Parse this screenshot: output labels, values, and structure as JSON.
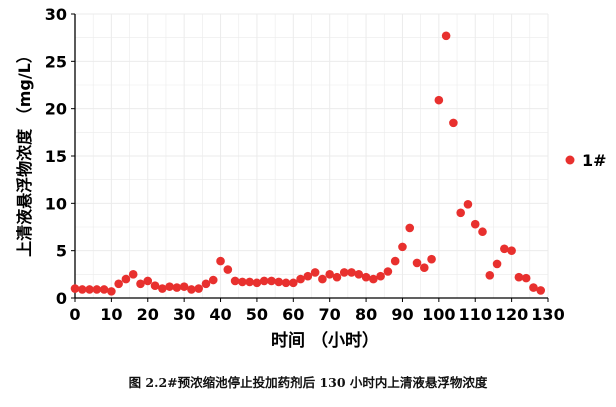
{
  "caption": "图 2.2#预浓缩池停止投加药剂后 130 小时内上清液悬浮物浓度",
  "colors": {
    "point": "#e8302e",
    "grid": "#ebebeb",
    "axis": "#000000"
  },
  "chart_data": {
    "type": "scatter",
    "title": "",
    "xlabel": "时间 （小时）",
    "ylabel": "上清液悬浮物浓度 （mg/L）",
    "xlim": [
      0,
      130
    ],
    "ylim": [
      0,
      30
    ],
    "x_ticks": [
      "0",
      "10",
      "20",
      "30",
      "40",
      "50",
      "60",
      "70",
      "80",
      "90",
      "100",
      "110",
      "120",
      "130"
    ],
    "y_ticks": [
      "0",
      "5",
      "10",
      "15",
      "20",
      "25",
      "30"
    ],
    "grid": true,
    "legend": "right",
    "series": [
      {
        "name": "1#",
        "points": [
          [
            0,
            1.0
          ],
          [
            2,
            0.9
          ],
          [
            4,
            0.9
          ],
          [
            6,
            0.9
          ],
          [
            8,
            0.9
          ],
          [
            10,
            0.7
          ],
          [
            12,
            1.5
          ],
          [
            14,
            2.0
          ],
          [
            16,
            2.5
          ],
          [
            18,
            1.5
          ],
          [
            20,
            1.8
          ],
          [
            22,
            1.3
          ],
          [
            24,
            1.0
          ],
          [
            26,
            1.2
          ],
          [
            28,
            1.1
          ],
          [
            30,
            1.2
          ],
          [
            32,
            0.9
          ],
          [
            34,
            1.0
          ],
          [
            36,
            1.5
          ],
          [
            38,
            1.9
          ],
          [
            40,
            3.9
          ],
          [
            42,
            3.0
          ],
          [
            44,
            1.8
          ],
          [
            46,
            1.7
          ],
          [
            48,
            1.7
          ],
          [
            50,
            1.6
          ],
          [
            52,
            1.8
          ],
          [
            54,
            1.8
          ],
          [
            56,
            1.7
          ],
          [
            58,
            1.6
          ],
          [
            60,
            1.6
          ],
          [
            62,
            2.0
          ],
          [
            64,
            2.3
          ],
          [
            66,
            2.7
          ],
          [
            68,
            2.0
          ],
          [
            70,
            2.5
          ],
          [
            72,
            2.2
          ],
          [
            74,
            2.7
          ],
          [
            76,
            2.7
          ],
          [
            78,
            2.5
          ],
          [
            80,
            2.2
          ],
          [
            82,
            2.0
          ],
          [
            84,
            2.3
          ],
          [
            86,
            2.8
          ],
          [
            88,
            3.9
          ],
          [
            90,
            5.4
          ],
          [
            92,
            7.4
          ],
          [
            94,
            3.7
          ],
          [
            96,
            3.2
          ],
          [
            98,
            4.1
          ],
          [
            100,
            20.9
          ],
          [
            102,
            27.7
          ],
          [
            104,
            18.5
          ],
          [
            106,
            9.0
          ],
          [
            108,
            9.9
          ],
          [
            110,
            7.8
          ],
          [
            112,
            7.0
          ],
          [
            114,
            2.4
          ],
          [
            116,
            3.6
          ],
          [
            118,
            5.2
          ],
          [
            120,
            5.0
          ],
          [
            122,
            2.2
          ],
          [
            124,
            2.1
          ],
          [
            126,
            1.1
          ],
          [
            128,
            0.8
          ]
        ]
      }
    ]
  }
}
